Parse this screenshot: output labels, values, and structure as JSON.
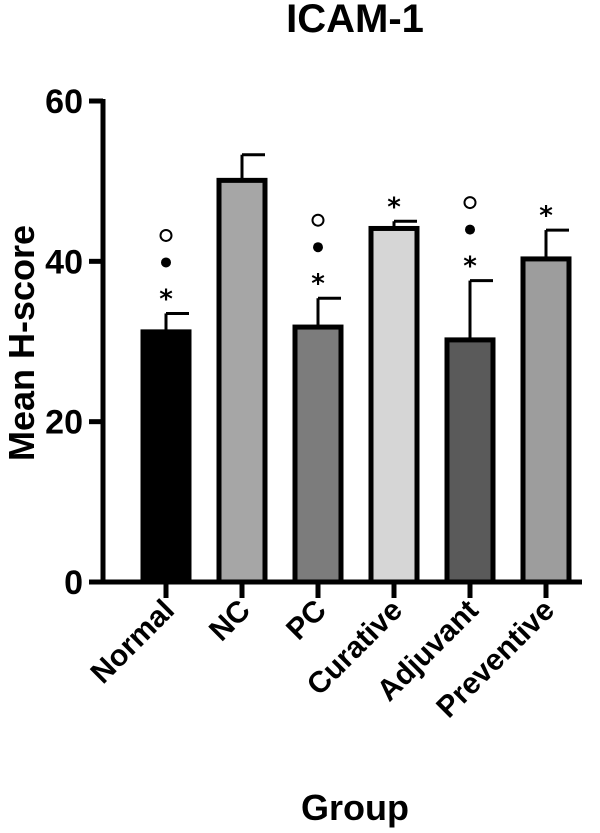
{
  "chart_data": {
    "type": "bar",
    "title": "ICAM-1",
    "xlabel": "Group",
    "ylabel": "Mean  H-score",
    "ylim": [
      0,
      60
    ],
    "yticks": [
      0,
      20,
      40,
      60
    ],
    "grid": false,
    "legend": "none",
    "categories": [
      "Normal",
      "NC",
      "PC",
      "Curative",
      "Adjuvant",
      "Preventive"
    ],
    "values": [
      31.2,
      50.1,
      31.8,
      44.1,
      30.2,
      40.3
    ],
    "errors": [
      2.3,
      3.2,
      3.6,
      0.9,
      7.4,
      3.6
    ],
    "colors": [
      "#000000",
      "#a6a6a6",
      "#7c7c7c",
      "#d6d6d6",
      "#5a5a5a",
      "#9d9d9d"
    ],
    "annotations": [
      {
        "category": "Normal",
        "marks": [
          "*",
          "●",
          "○"
        ]
      },
      {
        "category": "NC",
        "marks": []
      },
      {
        "category": "PC",
        "marks": [
          "*",
          "●",
          "○"
        ]
      },
      {
        "category": "Curative",
        "marks": [
          "*"
        ]
      },
      {
        "category": "Adjuvant",
        "marks": [
          "*",
          "●",
          "○"
        ]
      },
      {
        "category": "Preventive",
        "marks": [
          "*"
        ]
      }
    ]
  }
}
